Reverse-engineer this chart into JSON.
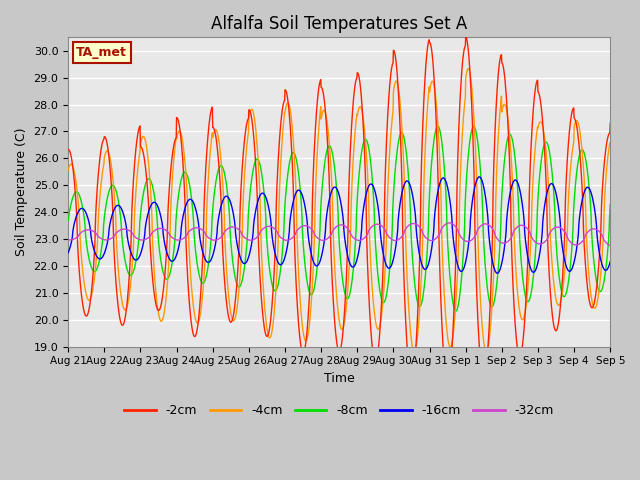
{
  "title": "Alfalfa Soil Temperatures Set A",
  "xlabel": "Time",
  "ylabel": "Soil Temperature (C)",
  "ylim": [
    19.0,
    30.5
  ],
  "yticks": [
    19.0,
    20.0,
    21.0,
    22.0,
    23.0,
    24.0,
    25.0,
    26.0,
    27.0,
    28.0,
    29.0,
    30.0
  ],
  "bg_color": "#e8e8e8",
  "line_colors": {
    "-2cm": "#ff2200",
    "-4cm": "#ff9900",
    "-8cm": "#00dd00",
    "-16cm": "#0000ee",
    "-32cm": "#cc44cc"
  },
  "annotation_text": "TA_met",
  "annotation_color": "#aa1100",
  "annotation_bg": "#ffffcc",
  "annotation_border": "#aa1100",
  "days": [
    "Aug 21",
    "Aug 22",
    "Aug 23",
    "Aug 24",
    "Aug 25",
    "Aug 26",
    "Aug 27",
    "Aug 28",
    "Aug 29",
    "Aug 30",
    "Aug 31",
    "Sep 1",
    "Sep 2",
    "Sep 3",
    "Sep 4",
    "Sep 5"
  ],
  "legend_labels": [
    "-2cm",
    "-4cm",
    "-8cm",
    "-16cm",
    "-32cm"
  ]
}
